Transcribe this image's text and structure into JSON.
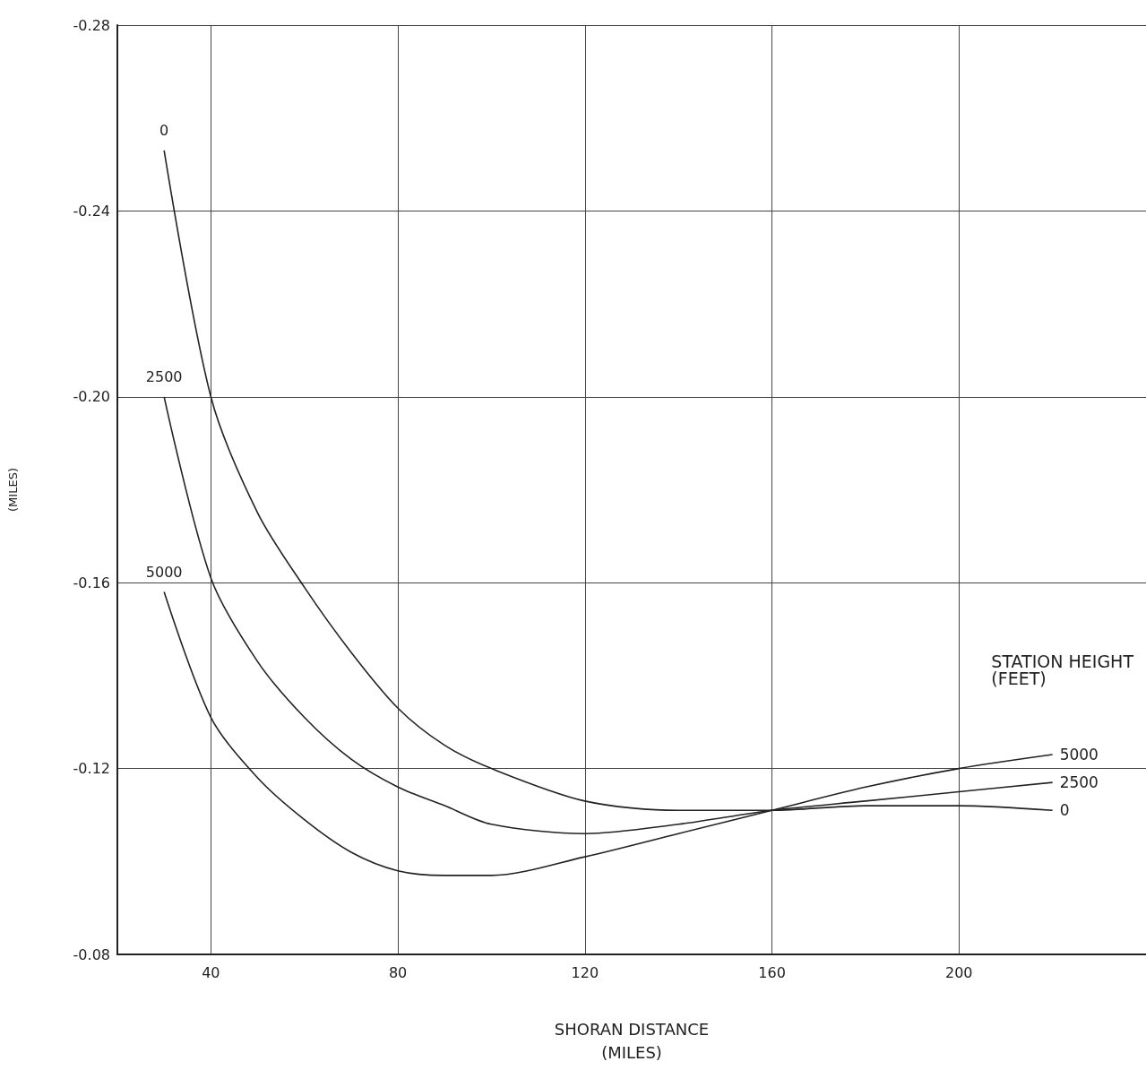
{
  "chart_data": {
    "type": "line",
    "xlabel": "SHORAN DISTANCE\n(MILES)",
    "ylabel": "(MILES)",
    "legend_title": "STATION HEIGHT\n(FEET)",
    "xlim": [
      20,
      240
    ],
    "xticks": [
      40,
      80,
      120,
      160,
      200
    ],
    "ylim": [
      -0.08,
      -0.28
    ],
    "yticks": [
      {
        "value": -0.28,
        "label": "-0.28"
      },
      {
        "value": -0.24,
        "label": "-0.24"
      },
      {
        "value": -0.2,
        "label": "-0.20"
      },
      {
        "value": -0.16,
        "label": "-0.16"
      },
      {
        "value": -0.12,
        "label": "-0.12"
      },
      {
        "value": -0.08,
        "label": "-0.08"
      }
    ],
    "grid": true,
    "legend": false,
    "marker": "none",
    "line_style": "solid",
    "series": [
      {
        "name": "0",
        "color": "#222222",
        "x": [
          30,
          40,
          50,
          60,
          70,
          80,
          90,
          100,
          120,
          140,
          160,
          180,
          200,
          220
        ],
        "values": [
          -0.253,
          -0.2,
          -0.175,
          -0.159,
          -0.145,
          -0.133,
          -0.125,
          -0.12,
          -0.113,
          -0.111,
          -0.111,
          -0.112,
          -0.112,
          -0.111
        ]
      },
      {
        "name": "2500",
        "color": "#222222",
        "x": [
          30,
          40,
          50,
          60,
          70,
          80,
          90,
          100,
          120,
          140,
          160,
          180,
          200,
          220
        ],
        "values": [
          -0.2,
          -0.161,
          -0.143,
          -0.131,
          -0.122,
          -0.116,
          -0.112,
          -0.108,
          -0.106,
          -0.108,
          -0.111,
          -0.113,
          -0.115,
          -0.117
        ]
      },
      {
        "name": "5000",
        "color": "#222222",
        "x": [
          30,
          40,
          50,
          60,
          70,
          80,
          90,
          100,
          120,
          140,
          160,
          180,
          200,
          220
        ],
        "values": [
          -0.158,
          -0.131,
          -0.118,
          -0.109,
          -0.102,
          -0.098,
          -0.097,
          -0.097,
          -0.101,
          -0.106,
          -0.111,
          -0.116,
          -0.12,
          -0.123
        ]
      }
    ]
  }
}
